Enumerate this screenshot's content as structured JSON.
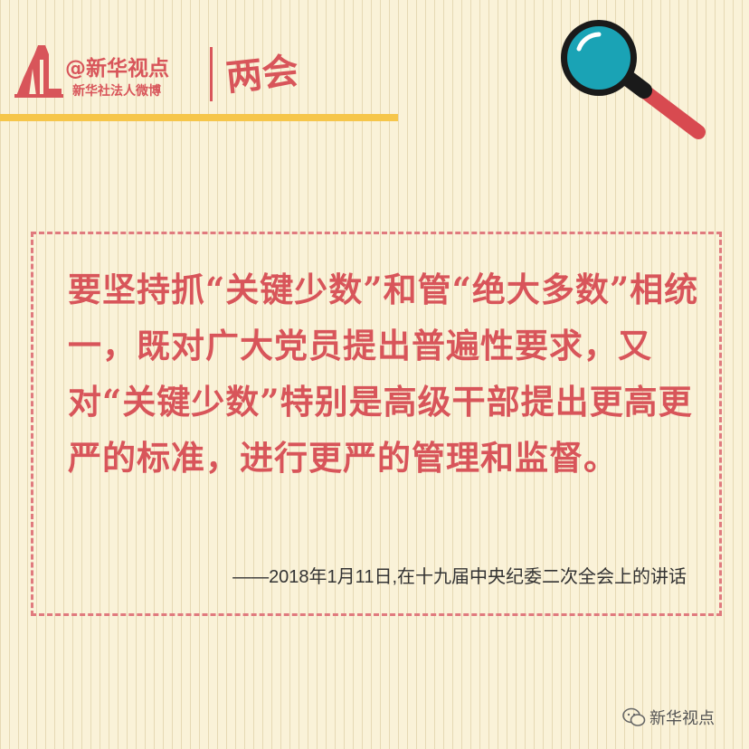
{
  "brand": {
    "title": "@新华视点",
    "subtitle": "新华社法人微博",
    "badge": "两会"
  },
  "quote": {
    "text": "要坚持抓“关键少数”和管“绝大多数”相统一，既对广大党员提出普遍性要求，又对“关键少数”特别是高级干部提出更高更严的标准，进行更严的管理和监督。",
    "source": "——2018年1月11日,在十九届中央纪委二次全会上的讲话"
  },
  "footer": {
    "watermark": "新华视点",
    "icon": "wechat-icon"
  },
  "colors": {
    "background": "#faf2d8",
    "accent_red": "#d8555a",
    "accent_yellow": "#f6c64a",
    "magnifier_lens": "#1aa3b5"
  }
}
